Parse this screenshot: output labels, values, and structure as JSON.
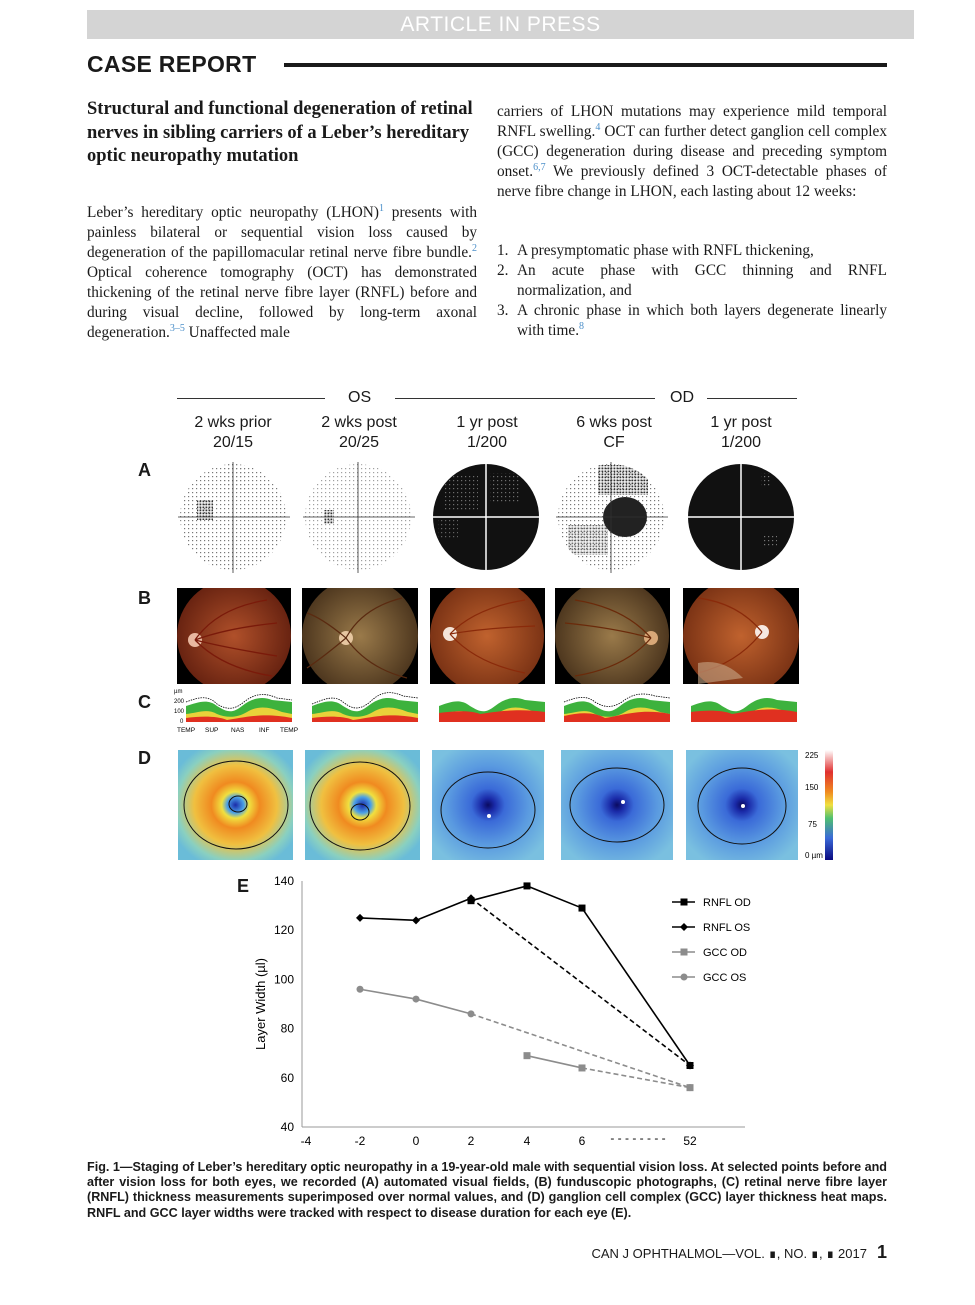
{
  "banner": "ARTICLE IN PRESS",
  "section": "CASE REPORT",
  "title": "Structural and functional degeneration of retinal nerves in sibling carriers of a Leber’s hereditary optic neuropathy mutation",
  "left_para": {
    "t1": "Leber’s hereditary optic neuropathy (LHON)",
    "r1": "1",
    "t2": " presents with painless bilateral or sequential vision loss caused by degeneration of the papillomacular retinal nerve fibre bundle.",
    "r2": "2",
    "t3": " Optical coherence tomography (OCT) has demonstrated thickening of the retinal nerve fibre layer (RNFL) before and during visual decline, followed by long-term axonal degeneration.",
    "r3": "3–5",
    "t4": " Unaffected male"
  },
  "right_para": {
    "t1": "carriers of LHON mutations may experience mild temporal RNFL swelling.",
    "r1": "4",
    "t2": " OCT can further detect ganglion cell complex (GCC) degeneration during disease and preceding symptom onset.",
    "r2": "6,7",
    "t3": " We previously defined 3 OCT-detectable phases of nerve fibre change in LHON, each lasting about 12 weeks:"
  },
  "list": [
    {
      "num": "1.",
      "text": "A presymptomatic phase with RNFL thickening,",
      "ref": ""
    },
    {
      "num": "2.",
      "text": "An acute phase with GCC thinning and RNFL normalization, and",
      "ref": ""
    },
    {
      "num": "3.",
      "text": "A chronic phase in which both layers degenerate linearly with time.",
      "ref": "8"
    }
  ],
  "figure": {
    "eye_os": "OS",
    "eye_od": "OD",
    "columns": [
      {
        "time": "2 wks prior",
        "acuity": "20/15"
      },
      {
        "time": "2 wks post",
        "acuity": "20/25"
      },
      {
        "time": "1 yr post",
        "acuity": "1/200"
      },
      {
        "time": "6 wks post",
        "acuity": "CF"
      },
      {
        "time": "1 yr post",
        "acuity": "1/200"
      }
    ],
    "row_labels": {
      "a": "A",
      "b": "B",
      "c": "C",
      "d": "D",
      "e": "E"
    },
    "rnfl_axis": {
      "unit": "µm",
      "ticks": [
        "200",
        "100",
        "0"
      ],
      "x_ticks": [
        "TEMP",
        "SUP",
        "NAS",
        "INF",
        "TEMP"
      ]
    },
    "heatmap_scale": {
      "ticks": [
        "225",
        "150",
        "75",
        "0 µm"
      ]
    }
  },
  "chart_data": {
    "type": "line",
    "title": "",
    "xlabel": "",
    "ylabel": "Layer Width (µl)",
    "ylim": [
      40,
      140
    ],
    "yticks": [
      40,
      60,
      80,
      100,
      120,
      140
    ],
    "xtick_labels": [
      "-4",
      "-2",
      "0",
      "2",
      "4",
      "6",
      "52"
    ],
    "axis_break_label": "- - - - - - - -",
    "series": [
      {
        "name": "RNFL OD",
        "marker": "square",
        "color": "#000000",
        "points": [
          [
            2,
            132
          ],
          [
            4,
            138
          ],
          [
            6,
            129
          ],
          [
            52,
            65
          ]
        ],
        "dashed_segments": [
          [
            2,
            52
          ]
        ]
      },
      {
        "name": "RNFL OS",
        "marker": "diamond",
        "color": "#000000",
        "points": [
          [
            -2,
            125
          ],
          [
            0,
            124
          ],
          [
            2,
            133
          ],
          [
            52,
            65
          ]
        ],
        "dashed_segments": [
          [
            2,
            52
          ]
        ]
      },
      {
        "name": "GCC OD",
        "marker": "square",
        "color": "#8c8c8c",
        "points": [
          [
            4,
            69
          ],
          [
            6,
            64
          ],
          [
            52,
            56
          ]
        ],
        "dashed_segments": [
          [
            6,
            52
          ]
        ]
      },
      {
        "name": "GCC OS",
        "marker": "circle",
        "color": "#8c8c8c",
        "points": [
          [
            -2,
            96
          ],
          [
            0,
            92
          ],
          [
            2,
            86
          ],
          [
            52,
            56
          ]
        ],
        "dashed_segments": [
          [
            2,
            52
          ]
        ]
      }
    ]
  },
  "caption": {
    "label": "Fig. 1—",
    "text": "Staging of Leber’s hereditary optic neuropathy in a 19-year-old male with sequential vision loss. At selected points before and after vision loss for both eyes, we recorded (A) automated visual fields, (B) funduscopic photographs, (C) retinal nerve fibre layer (RNFL) thickness measurements superimposed over normal values, and (D) ganglion cell complex (GCC) layer thickness heat maps. RNFL and GCC layer widths were tracked with respect to disease duration for each eye (E)."
  },
  "footer": {
    "journal": "CAN J OPHTHALMOL—VOL. ∎, NO. ∎, ∎ 2017",
    "page": "1"
  },
  "colors": {
    "ref_link": "#4b8fc9",
    "banner_bg": "#d4d4d4",
    "series_black": "#000000",
    "series_gray": "#8c8c8c"
  }
}
